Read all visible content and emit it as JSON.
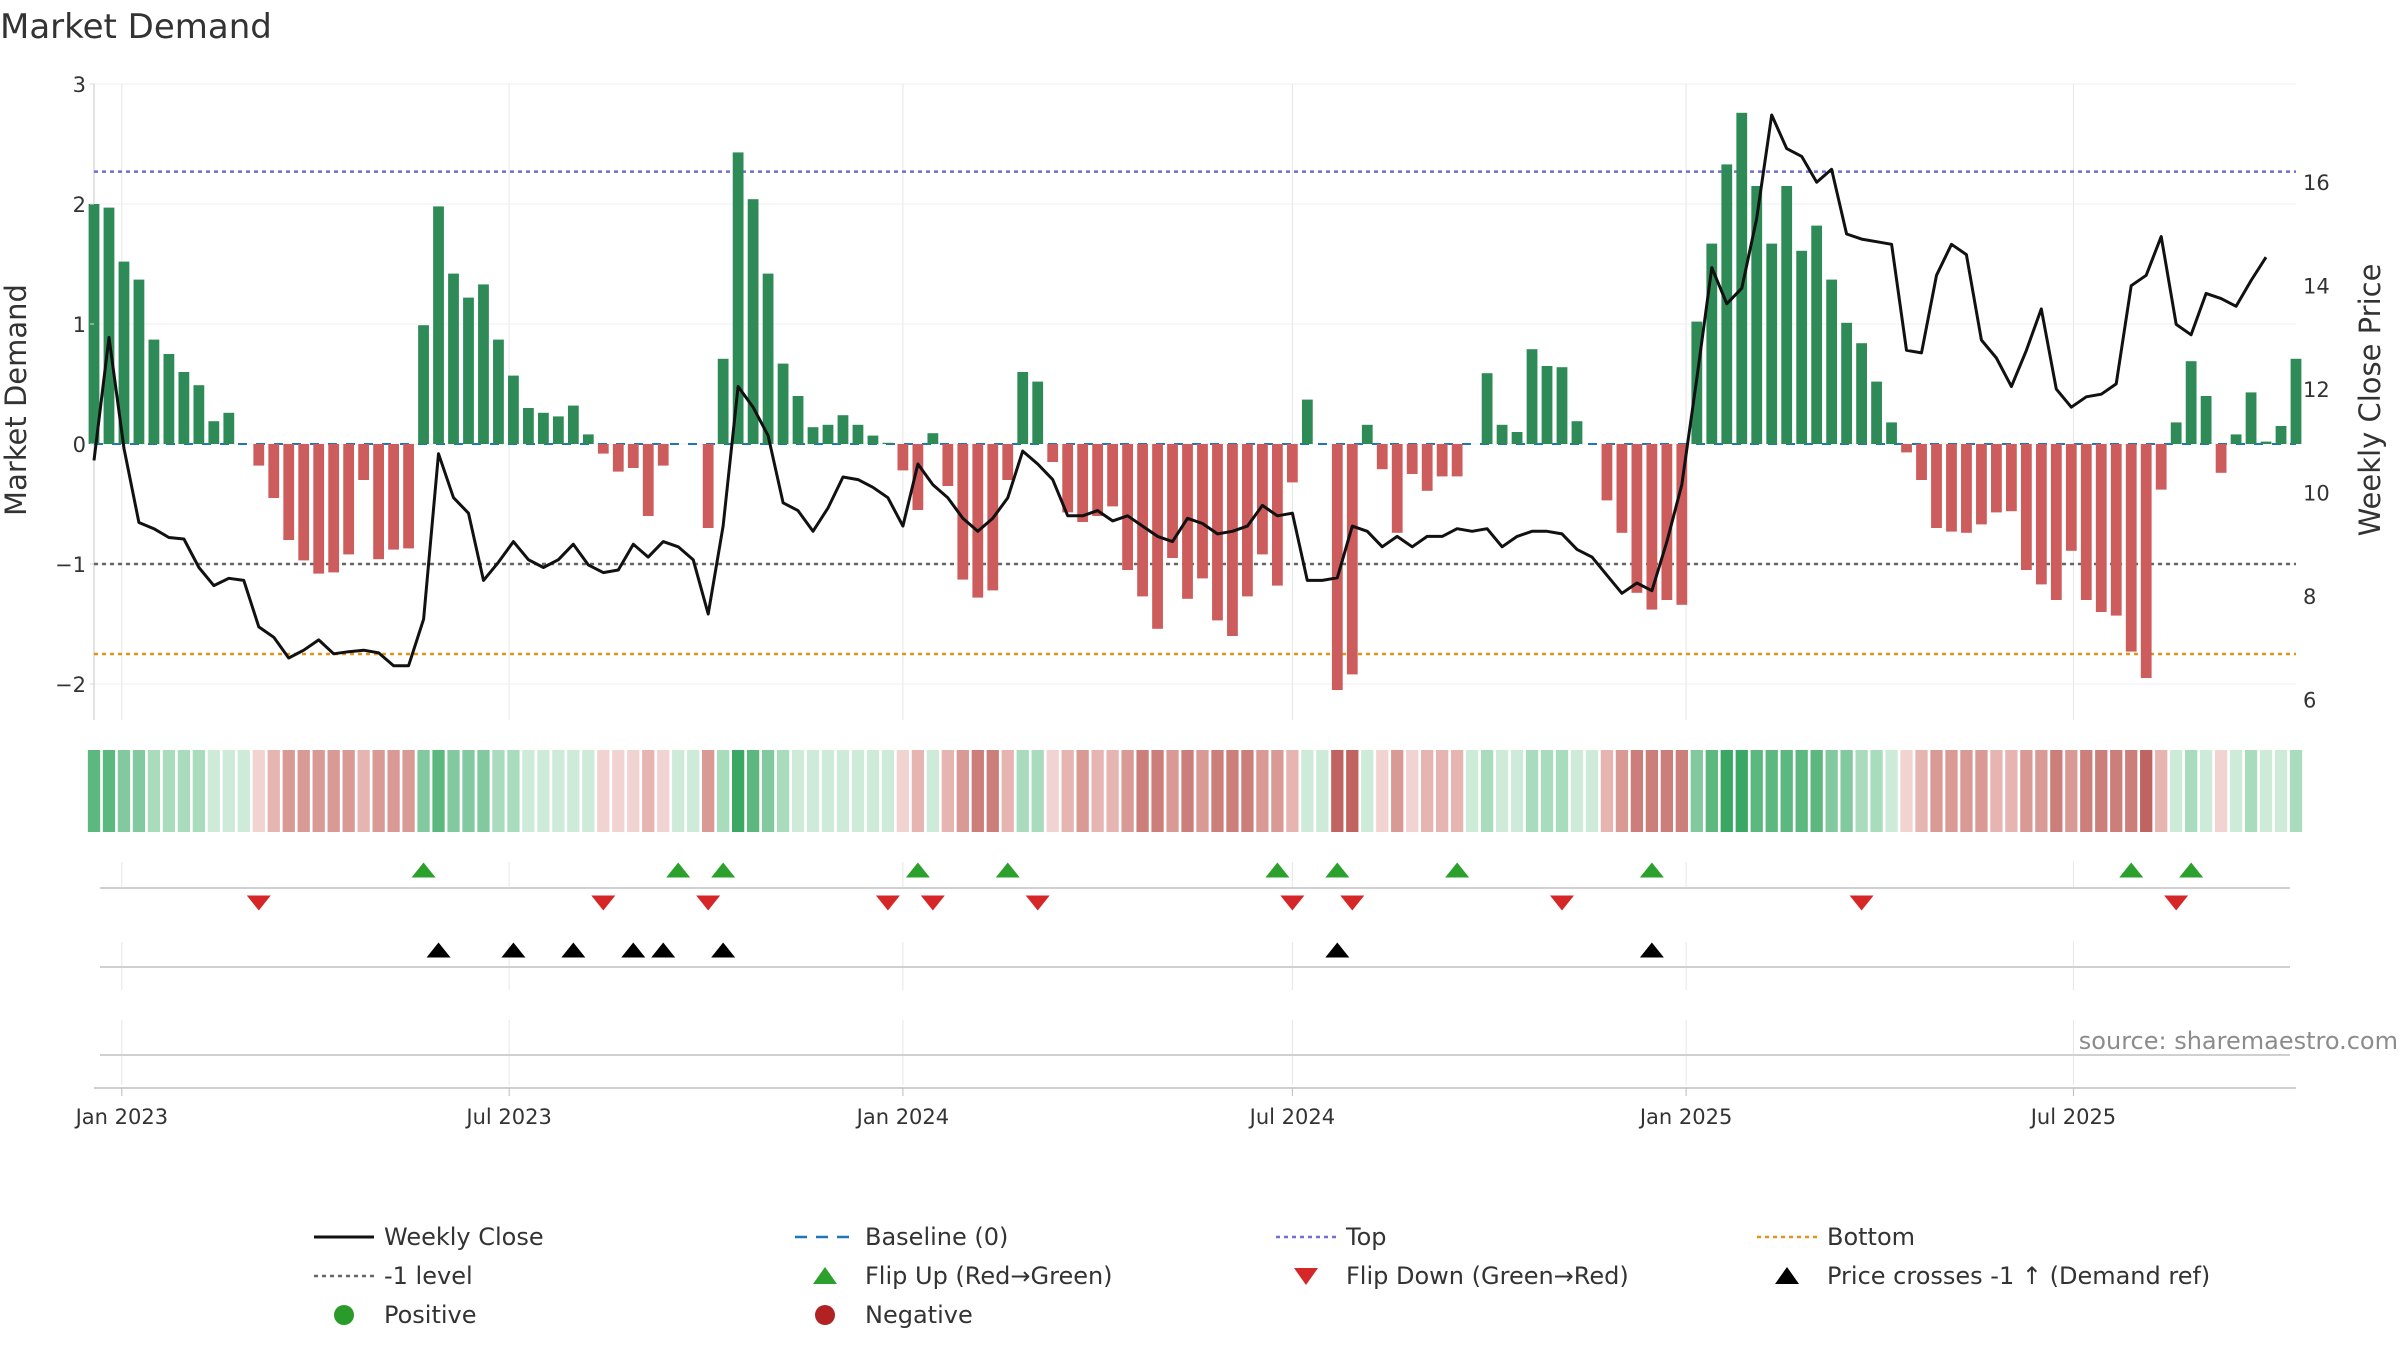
{
  "chart_data": {
    "type": "bar",
    "title": "Market Demand",
    "ylabel_left": "Market Demand",
    "ylabel_right": "Weekly Close Price",
    "source": "source: sharemaestro.com",
    "y_left": {
      "ticks": [
        3,
        2,
        1,
        0,
        -1,
        -2
      ],
      "ylim": [
        -2.3,
        3
      ]
    },
    "y_right": {
      "ticks": [
        16,
        14,
        12,
        10,
        8,
        6
      ],
      "ylim": [
        5.6,
        17.9
      ]
    },
    "x_range": [
      "2022-12-19",
      "2025-10-13"
    ],
    "x_ticks": [
      {
        "date": "2023-01-01",
        "label": "Jan 2023"
      },
      {
        "date": "2023-07-01",
        "label": "Jul 2023"
      },
      {
        "date": "2024-01-01",
        "label": "Jan 2024"
      },
      {
        "date": "2024-07-01",
        "label": "Jul 2024"
      },
      {
        "date": "2025-01-01",
        "label": "Jan 2025"
      },
      {
        "date": "2025-07-01",
        "label": "Jul 2025"
      }
    ],
    "start_date": "2022-12-19",
    "week_days": 7,
    "reference_lines": {
      "top": 2.27,
      "minus_one": -1,
      "bottom": -1.75,
      "baseline": 0
    },
    "demand": [
      2.0,
      1.97,
      1.52,
      1.37,
      0.87,
      0.75,
      0.6,
      0.49,
      0.19,
      0.26,
      0.0,
      -0.18,
      -0.45,
      -0.8,
      -0.97,
      -1.08,
      -1.07,
      -0.92,
      -0.3,
      -0.96,
      -0.88,
      -0.87,
      0.99,
      1.98,
      1.42,
      1.22,
      1.33,
      0.87,
      0.57,
      0.3,
      0.26,
      0.23,
      0.32,
      0.08,
      -0.08,
      -0.23,
      -0.2,
      -0.6,
      -0.18,
      0.0,
      0.0,
      -0.7,
      0.71,
      2.43,
      2.04,
      1.42,
      0.67,
      0.4,
      0.14,
      0.16,
      0.24,
      0.16,
      0.07,
      0.01,
      -0.22,
      -0.55,
      0.09,
      -0.35,
      -1.13,
      -1.28,
      -1.22,
      -0.3,
      0.6,
      0.52,
      -0.15,
      -0.57,
      -0.65,
      -0.6,
      -0.52,
      -1.05,
      -1.27,
      -1.54,
      -0.95,
      -1.29,
      -1.12,
      -1.47,
      -1.6,
      -1.27,
      -0.92,
      -1.18,
      -0.32,
      0.37,
      0.0,
      -2.05,
      -1.92,
      0.16,
      -0.21,
      -0.74,
      -0.25,
      -0.39,
      -0.27,
      -0.27,
      0.0,
      0.59,
      0.16,
      0.1,
      0.79,
      0.65,
      0.64,
      0.19,
      0.0,
      -0.47,
      -0.74,
      -1.24,
      -1.38,
      -1.3,
      -1.34,
      1.02,
      1.67,
      2.33,
      2.76,
      2.15,
      1.67,
      2.15,
      1.61,
      1.82,
      1.37,
      1.01,
      0.84,
      0.52,
      0.18,
      -0.07,
      -0.3,
      -0.7,
      -0.73,
      -0.74,
      -0.67,
      -0.57,
      -0.56,
      -1.05,
      -1.17,
      -1.3,
      -0.89,
      -1.3,
      -1.4,
      -1.43,
      -1.73,
      -1.95,
      -0.38,
      0.18,
      0.69,
      0.4,
      -0.24,
      0.08,
      0.43,
      0.02,
      0.15,
      0.71
    ],
    "price": [
      10.62,
      13.0,
      10.85,
      9.42,
      9.3,
      9.13,
      9.1,
      8.55,
      8.2,
      8.34,
      8.3,
      7.4,
      7.2,
      6.8,
      6.95,
      7.15,
      6.88,
      6.92,
      6.95,
      6.9,
      6.65,
      6.65,
      7.55,
      10.75,
      9.9,
      9.6,
      8.3,
      8.65,
      9.05,
      8.7,
      8.55,
      8.7,
      9.0,
      8.6,
      8.45,
      8.5,
      9.0,
      8.75,
      9.05,
      8.95,
      8.7,
      7.65,
      9.35,
      12.05,
      11.65,
      11.1,
      9.8,
      9.65,
      9.25,
      9.7,
      10.3,
      10.25,
      10.1,
      9.9,
      9.35,
      10.55,
      10.15,
      9.9,
      9.5,
      9.25,
      9.5,
      9.9,
      10.8,
      10.55,
      10.25,
      9.55,
      9.55,
      9.65,
      9.45,
      9.55,
      9.35,
      9.15,
      9.05,
      9.5,
      9.4,
      9.2,
      9.25,
      9.35,
      9.75,
      9.55,
      9.6,
      8.3,
      8.3,
      8.35,
      9.35,
      9.25,
      8.95,
      9.15,
      8.95,
      9.15,
      9.15,
      9.3,
      9.25,
      9.3,
      8.95,
      9.15,
      9.25,
      9.25,
      9.2,
      8.9,
      8.75,
      8.4,
      8.05,
      8.25,
      8.1,
      9.05,
      10.15,
      12.2,
      14.35,
      13.65,
      13.95,
      15.3,
      17.3,
      16.65,
      16.5,
      16.0,
      16.25,
      15.0,
      14.9,
      14.85,
      14.8,
      12.75,
      12.7,
      14.2,
      14.8,
      14.6,
      12.95,
      12.6,
      12.05,
      12.75,
      13.55,
      12.0,
      11.65,
      11.85,
      11.9,
      12.1,
      14.0,
      14.2,
      14.95,
      13.25,
      13.05,
      13.85,
      13.75,
      13.6,
      14.1,
      14.55
    ],
    "flip_up_weeks": [
      22,
      39,
      42,
      55,
      61,
      79,
      83,
      91,
      104,
      136,
      140
    ],
    "flip_down_weeks": [
      11,
      34,
      41,
      53,
      56,
      63,
      80,
      84,
      98,
      118,
      139
    ],
    "price_cross_weeks": [
      23,
      28,
      32,
      36,
      38,
      42,
      83,
      104
    ],
    "legend": [
      {
        "label": "Weekly Close",
        "symbol": "solid-line",
        "color": "#111111"
      },
      {
        "label": "Baseline (0)",
        "symbol": "dashed-line",
        "color": "#1f77b4"
      },
      {
        "label": "Top",
        "symbol": "dotted-line",
        "color": "#6f6fd6"
      },
      {
        "label": "Bottom",
        "symbol": "dotted-line",
        "color": "#e0951a"
      },
      {
        "label": "-1 level",
        "symbol": "dotted-line",
        "color": "#666666"
      },
      {
        "label": "Flip Up (Red→Green)",
        "symbol": "triangle-up",
        "color": "#2ca02c"
      },
      {
        "label": "Flip Down (Green→Red)",
        "symbol": "triangle-down",
        "color": "#d62728"
      },
      {
        "label": "Price crosses -1 ↑ (Demand ref)",
        "symbol": "triangle-up",
        "color": "#000000"
      },
      {
        "label": "Positive",
        "symbol": "circle",
        "color": "#2a9a2a"
      },
      {
        "label": "Negative",
        "symbol": "circle",
        "color": "#b22222"
      }
    ],
    "colors": {
      "positive_bar": "#2e8b57",
      "negative_bar": "#cd5c5c",
      "price_line": "#111111",
      "grid": "#e6e6e6",
      "axis": "#d9d9d9"
    }
  }
}
